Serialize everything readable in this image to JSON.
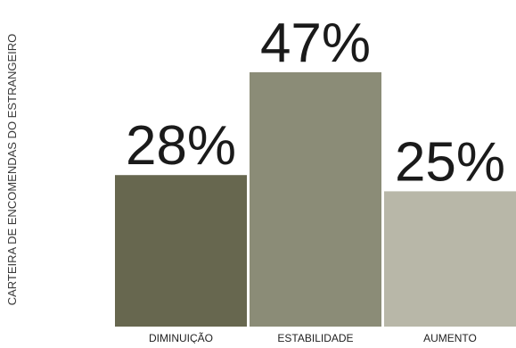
{
  "chart_data": {
    "type": "bar",
    "ylabel": "CARTEIRA DE ENCOMENDAS DO ESTRANGEIRO",
    "categories": [
      "DIMINUIÇÃO",
      "ESTABILIDADE",
      "AUMENTO"
    ],
    "values": [
      28,
      47,
      25
    ],
    "value_labels": [
      "28%",
      "47%",
      "25%"
    ],
    "ylim": [
      0,
      47
    ],
    "grid": false,
    "legend": "none",
    "colors": [
      "#67674f",
      "#8b8c77",
      "#b8b7a8"
    ]
  }
}
